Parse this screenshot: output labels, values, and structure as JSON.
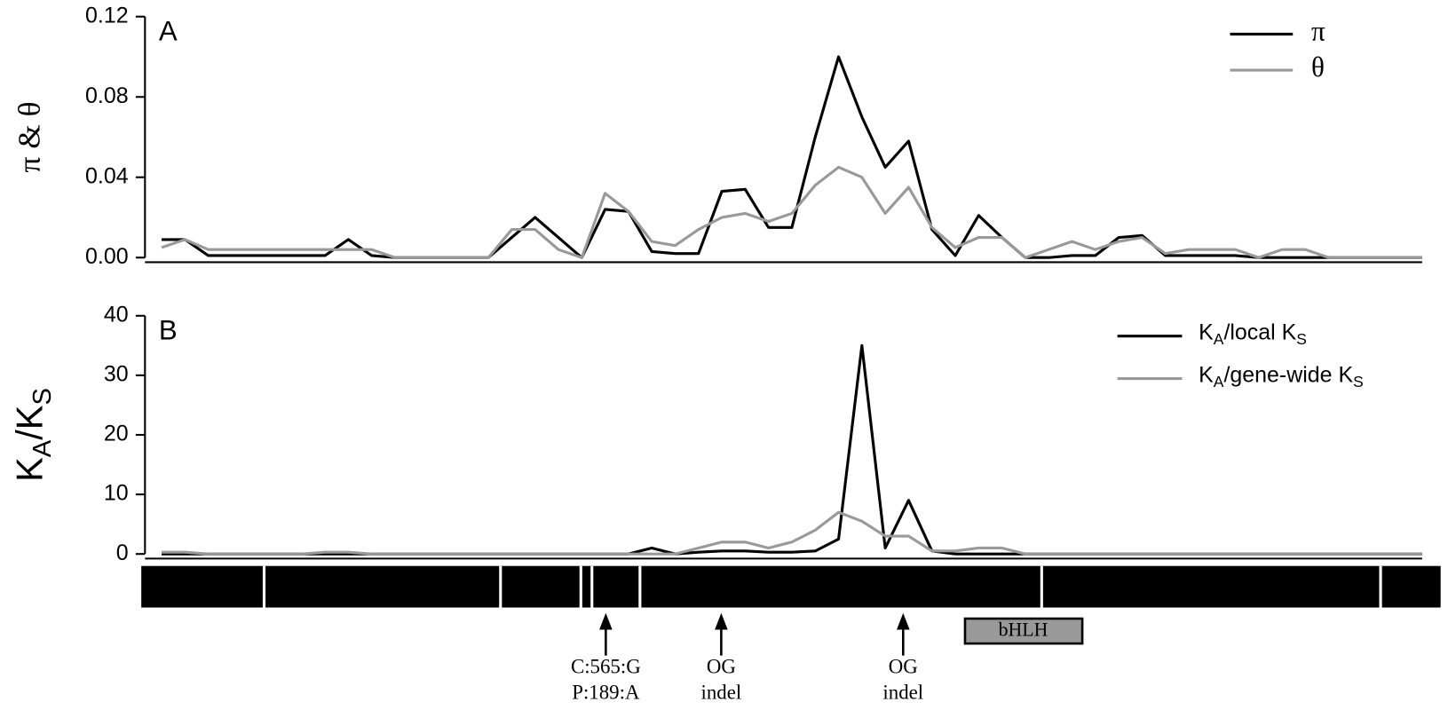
{
  "chart_data": [
    {
      "type": "line",
      "panel_label": "A",
      "ylabel": "π & θ",
      "ylim": [
        0,
        0.12
      ],
      "yticks": [
        {
          "value": 0,
          "label": "0.00"
        },
        0.04,
        0.08,
        0.12
      ],
      "legend": "top-right",
      "series": [
        {
          "name": "π",
          "color": "#000000",
          "values": [
            0.009,
            0.009,
            0.001,
            0.001,
            0.001,
            0.001,
            0.001,
            0.001,
            0.009,
            0.001,
            0,
            0,
            0,
            0,
            0,
            0.01,
            0.02,
            0.01,
            0,
            0.024,
            0.023,
            0.003,
            0.002,
            0.002,
            0.033,
            0.034,
            0.015,
            0.015,
            0.06,
            0.1,
            0.07,
            0.045,
            0.058,
            0.014,
            0.001,
            0.021,
            0.01,
            0,
            0,
            0.001,
            0.001,
            0.01,
            0.011,
            0.001,
            0.001,
            0.001,
            0.001,
            0,
            0,
            0,
            0,
            0,
            0,
            0,
            0
          ]
        },
        {
          "name": "θ",
          "color": "#999999",
          "values": [
            0.005,
            0.009,
            0.004,
            0.004,
            0.004,
            0.004,
            0.004,
            0.004,
            0.004,
            0.004,
            0,
            0,
            0,
            0,
            0,
            0.014,
            0.014,
            0.004,
            0,
            0.032,
            0.023,
            0.008,
            0.006,
            0.014,
            0.02,
            0.022,
            0.018,
            0.022,
            0.036,
            0.045,
            0.04,
            0.022,
            0.035,
            0.015,
            0.005,
            0.01,
            0.01,
            0,
            0.004,
            0.008,
            0.004,
            0.008,
            0.01,
            0.002,
            0.004,
            0.004,
            0.004,
            0,
            0.004,
            0.004,
            0,
            0,
            0,
            0,
            0
          ]
        }
      ]
    },
    {
      "type": "line",
      "panel_label": "B",
      "ylabel": [
        "K",
        "A",
        "/K",
        "S"
      ],
      "ylim": [
        0,
        40
      ],
      "yticks": [
        0,
        10,
        20,
        30,
        40
      ],
      "legend": "top-right",
      "series": [
        {
          "name": [
            "K",
            "A",
            "/local K",
            "S"
          ],
          "color": "#000000",
          "values": [
            0,
            0,
            0,
            0,
            0,
            0,
            0,
            0,
            0,
            0,
            0,
            0,
            0,
            0,
            0,
            0,
            0,
            0,
            0,
            0,
            0,
            1,
            0,
            0.3,
            0.5,
            0.5,
            0.3,
            0.3,
            0.5,
            2.5,
            35,
            1,
            9,
            0.5,
            0,
            0,
            0,
            0,
            0,
            0,
            0,
            0,
            0,
            0,
            0,
            0,
            0,
            0,
            0,
            0,
            0,
            0,
            0,
            0,
            0
          ]
        },
        {
          "name": [
            "K",
            "A",
            "/gene-wide K",
            "S"
          ],
          "color": "#999999",
          "values": [
            0.3,
            0.3,
            0,
            0,
            0,
            0,
            0,
            0.3,
            0.3,
            0,
            0,
            0,
            0,
            0,
            0,
            0,
            0,
            0,
            0,
            0,
            0,
            0,
            0,
            1,
            2,
            2,
            1,
            2,
            4,
            7,
            5.5,
            3,
            3,
            0.5,
            0.5,
            1,
            1,
            0,
            0,
            0,
            0,
            0,
            0,
            0,
            0,
            0,
            0,
            0,
            0,
            0,
            0,
            0,
            0,
            0,
            0
          ]
        }
      ]
    }
  ],
  "gene_model": {
    "domain_label": "bHLH",
    "annotations": [
      [
        "C:565:G",
        "P:189:A"
      ],
      [
        "OG",
        "indel"
      ],
      [
        "OG",
        "indel"
      ]
    ]
  }
}
